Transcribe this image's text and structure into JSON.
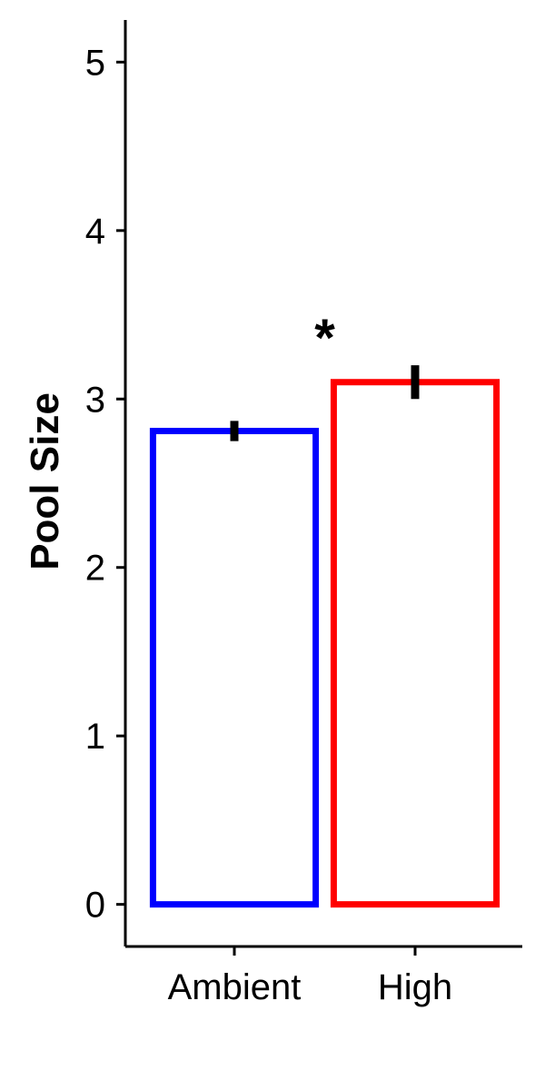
{
  "chart_data": {
    "type": "bar",
    "categories": [
      "Ambient",
      "High"
    ],
    "values": [
      2.81,
      3.1
    ],
    "errors": [
      0.06,
      0.1
    ],
    "colors": [
      "#0000ff",
      "#ff0000"
    ],
    "fill": "#ffffff",
    "title": "",
    "xlabel": "",
    "ylabel": "Pool Size",
    "ylim": [
      -0.25,
      5.25
    ],
    "yticks": [
      0,
      1,
      2,
      3,
      4,
      5
    ],
    "grid": false,
    "legend": "none",
    "annotation": {
      "text": "*",
      "between": [
        "Ambient",
        "High"
      ]
    }
  }
}
